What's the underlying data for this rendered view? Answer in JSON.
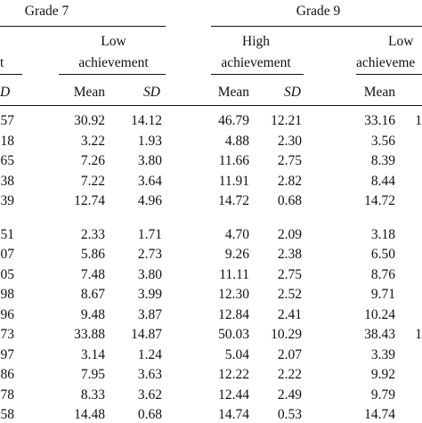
{
  "table": {
    "grade_groups": [
      {
        "label": "Grade 7"
      },
      {
        "label": "Grade 9"
      }
    ],
    "achievement_headers": {
      "g7_high_partial": "t",
      "g7_low_line1": "Low",
      "g7_low_line2": "achievement",
      "g9_high_line1": "High",
      "g9_high_line2": "achievement",
      "g9_low_line1": "Low",
      "g9_low_line2": "achieveme"
    },
    "stat_headers": {
      "g7_high_sd_partial": "D",
      "mean": "Mean",
      "sd": "SD"
    },
    "rows": [
      {
        "g7_high_sd": "57",
        "g7_low_mean": "30.92",
        "g7_low_sd": "14.12",
        "g9_high_mean": "46.79",
        "g9_high_sd": "12.21",
        "g9_low_mean": "33.16",
        "g9_low_sd": "1"
      },
      {
        "g7_high_sd": "18",
        "g7_low_mean": "3.22",
        "g7_low_sd": "1.93",
        "g9_high_mean": "4.88",
        "g9_high_sd": "2.30",
        "g9_low_mean": "3.56",
        "g9_low_sd": ""
      },
      {
        "g7_high_sd": "65",
        "g7_low_mean": "7.26",
        "g7_low_sd": "3.80",
        "g9_high_mean": "11.66",
        "g9_high_sd": "2.75",
        "g9_low_mean": "8.39",
        "g9_low_sd": ""
      },
      {
        "g7_high_sd": "38",
        "g7_low_mean": "7.22",
        "g7_low_sd": "3.64",
        "g9_high_mean": "11.91",
        "g9_high_sd": "2.82",
        "g9_low_mean": "8.44",
        "g9_low_sd": ""
      },
      {
        "g7_high_sd": "39",
        "g7_low_mean": "12.74",
        "g7_low_sd": "4.96",
        "g9_high_mean": "14.72",
        "g9_high_sd": "0.68",
        "g9_low_mean": "14.72",
        "g9_low_sd": ""
      },
      {
        "g7_high_sd": "51",
        "g7_low_mean": "2.33",
        "g7_low_sd": "1.71",
        "g9_high_mean": "4.70",
        "g9_high_sd": "2.09",
        "g9_low_mean": "3.18",
        "g9_low_sd": ""
      },
      {
        "g7_high_sd": "07",
        "g7_low_mean": "5.86",
        "g7_low_sd": "2.73",
        "g9_high_mean": "9.26",
        "g9_high_sd": "2.38",
        "g9_low_mean": "6.50",
        "g9_low_sd": ""
      },
      {
        "g7_high_sd": "05",
        "g7_low_mean": "7.48",
        "g7_low_sd": "3.80",
        "g9_high_mean": "11.11",
        "g9_high_sd": "2.75",
        "g9_low_mean": "8.76",
        "g9_low_sd": ""
      },
      {
        "g7_high_sd": "98",
        "g7_low_mean": "8.67",
        "g7_low_sd": "3.99",
        "g9_high_mean": "12.30",
        "g9_high_sd": "2.52",
        "g9_low_mean": "9.71",
        "g9_low_sd": ""
      },
      {
        "g7_high_sd": "96",
        "g7_low_mean": "9.48",
        "g7_low_sd": "3.87",
        "g9_high_mean": "12.84",
        "g9_high_sd": "2.41",
        "g9_low_mean": "10.24",
        "g9_low_sd": ""
      },
      {
        "g7_high_sd": "73",
        "g7_low_mean": "33.88",
        "g7_low_sd": "14.87",
        "g9_high_mean": "50.03",
        "g9_high_sd": "10.29",
        "g9_low_mean": "38.43",
        "g9_low_sd": "1"
      },
      {
        "g7_high_sd": "97",
        "g7_low_mean": "3.14",
        "g7_low_sd": "1.24",
        "g9_high_mean": "5.04",
        "g9_high_sd": "2.07",
        "g9_low_mean": "3.39",
        "g9_low_sd": ""
      },
      {
        "g7_high_sd": "86",
        "g7_low_mean": "7.95",
        "g7_low_sd": "3.63",
        "g9_high_mean": "12.22",
        "g9_high_sd": "2.22",
        "g9_low_mean": "9.92",
        "g9_low_sd": ""
      },
      {
        "g7_high_sd": "78",
        "g7_low_mean": "8.33",
        "g7_low_sd": "3.62",
        "g9_high_mean": "12.44",
        "g9_high_sd": "2.49",
        "g9_low_mean": "9.79",
        "g9_low_sd": ""
      },
      {
        "g7_high_sd": "58",
        "g7_low_mean": "14.48",
        "g7_low_sd": "0.68",
        "g9_high_mean": "14.74",
        "g9_high_sd": "0.53",
        "g9_low_mean": "14.74",
        "g9_low_sd": ""
      }
    ]
  }
}
